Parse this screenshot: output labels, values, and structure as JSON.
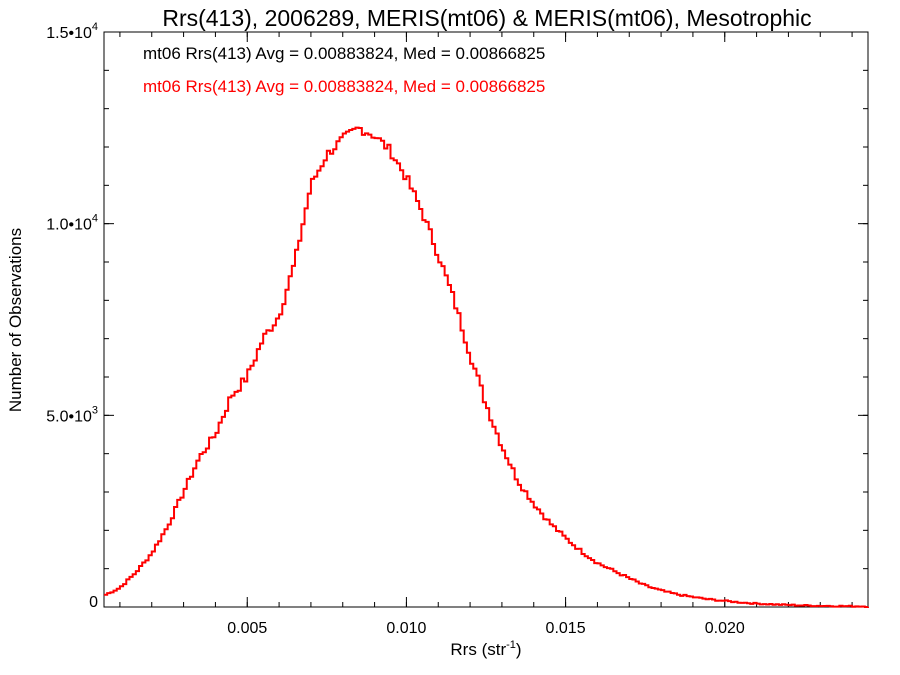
{
  "chart_data": {
    "type": "histogram-step",
    "title": "Rrs(413), 2006289, MERIS(mt06) & MERIS(mt06), Mesotrophic",
    "xlabel": {
      "base": "Rrs (str",
      "sup": "-1",
      "end": ")"
    },
    "ylabel": "Number of Observations",
    "xlim": [
      0.0005,
      0.0245
    ],
    "ylim": [
      0,
      15000
    ],
    "x_ticks": [
      {
        "value": 0.005,
        "label": "0.005"
      },
      {
        "value": 0.01,
        "label": "0.010"
      },
      {
        "value": 0.015,
        "label": "0.015"
      },
      {
        "value": 0.02,
        "label": "0.020"
      }
    ],
    "y_ticks": [
      {
        "value": 0,
        "label": "0",
        "sup": ""
      },
      {
        "value": 5000,
        "label": "5.0•10",
        "sup": "3"
      },
      {
        "value": 10000,
        "label": "1.0•10",
        "sup": "4"
      },
      {
        "value": 15000,
        "label": "1.5•10",
        "sup": "4"
      }
    ],
    "x_minor_step": 0.001,
    "y_minor_step": 1000,
    "legend": [
      {
        "text": "mt06 Rrs(413) Avg = 0.00883824, Med = 0.00866825",
        "color": "#000000"
      },
      {
        "text": "mt06 Rrs(413) Avg = 0.00883824, Med = 0.00866825",
        "color": "#ff0000"
      }
    ],
    "series": [
      {
        "name": "mt06 Rrs(413)",
        "color": "#ff0000",
        "x": [
          0.0005,
          0.001,
          0.0015,
          0.002,
          0.0025,
          0.003,
          0.0035,
          0.004,
          0.0045,
          0.005,
          0.0055,
          0.006,
          0.0065,
          0.007,
          0.0075,
          0.008,
          0.0085,
          0.009,
          0.0095,
          0.01,
          0.0105,
          0.011,
          0.0115,
          0.012,
          0.0125,
          0.013,
          0.0135,
          0.014,
          0.0145,
          0.015,
          0.0155,
          0.016,
          0.0165,
          0.017,
          0.0175,
          0.018,
          0.0185,
          0.019,
          0.0195,
          0.02,
          0.0205,
          0.021,
          0.0215,
          0.022,
          0.0225,
          0.023,
          0.0235,
          0.024,
          0.0245
        ],
        "y": [
          300,
          500,
          900,
          1400,
          2100,
          3000,
          3900,
          4500,
          5500,
          6000,
          7000,
          7600,
          9000,
          11000,
          11800,
          12200,
          12500,
          12300,
          11900,
          11200,
          10300,
          9200,
          8000,
          6600,
          5300,
          4200,
          3300,
          2700,
          2200,
          1800,
          1450,
          1150,
          950,
          750,
          560,
          430,
          330,
          260,
          200,
          160,
          120,
          90,
          70,
          55,
          40,
          30,
          25,
          20,
          15
        ]
      }
    ]
  }
}
